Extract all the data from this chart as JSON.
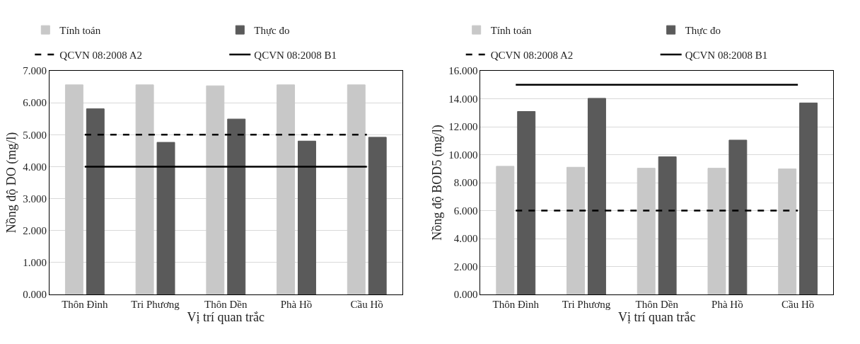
{
  "chart_data": [
    {
      "type": "bar",
      "xlabel": "Vị trí quan trắc",
      "ylabel": "Nồng độ DO (mg/l)",
      "categories": [
        "Thôn Đình",
        "Tri Phương",
        "Thôn Dền",
        "Phà Hồ",
        "Cầu Hồ"
      ],
      "series": [
        {
          "name": "Tính toán",
          "color": "#c8c8c8",
          "values": [
            6.56,
            6.56,
            6.53,
            6.56,
            6.56
          ]
        },
        {
          "name": "Thực đo",
          "color": "#5a5a5a",
          "values": [
            5.81,
            4.76,
            5.49,
            4.8,
            4.92
          ]
        },
        {
          "name": "QCVN 08:2008 A2",
          "type": "line",
          "line_style": "dashed",
          "color": "#000000",
          "values": [
            5,
            5,
            5,
            5,
            5
          ]
        },
        {
          "name": "QCVN 08:2008 B1",
          "type": "line",
          "line_style": "solid",
          "color": "#000000",
          "values": [
            4,
            4,
            4,
            4,
            4
          ]
        }
      ],
      "ylim": [
        0,
        7
      ],
      "yticks": [
        {
          "value": 0,
          "label": "0.000"
        },
        {
          "value": 1,
          "label": "1.000"
        },
        {
          "value": 2,
          "label": "2.000"
        },
        {
          "value": 3,
          "label": "3.000"
        },
        {
          "value": 4,
          "label": "4.000"
        },
        {
          "value": 5,
          "label": "5.000"
        },
        {
          "value": 6,
          "label": "6.000"
        },
        {
          "value": 7,
          "label": "7.000"
        }
      ],
      "grid": "y",
      "legend": "top"
    },
    {
      "type": "bar",
      "xlabel": "Vị trí quan trắc",
      "ylabel": "Nồng độ BOD5 (mg/l)",
      "categories": [
        "Thôn Đình",
        "Tri Phương",
        "Thôn Dền",
        "Phà Hồ",
        "Cầu Hồ"
      ],
      "series": [
        {
          "name": "Tính toán",
          "color": "#c8c8c8",
          "values": [
            9.17,
            9.1,
            9.03,
            9.03,
            8.98
          ]
        },
        {
          "name": "Thực đo",
          "color": "#5a5a5a",
          "values": [
            13.09,
            14.03,
            9.85,
            11.04,
            13.7
          ]
        },
        {
          "name": "QCVN 08:2008 A2",
          "type": "line",
          "line_style": "dashed",
          "color": "#000000",
          "values": [
            6,
            6,
            6,
            6,
            6
          ]
        },
        {
          "name": "QCVN 08:2008 B1",
          "type": "line",
          "line_style": "solid",
          "color": "#000000",
          "values": [
            15,
            15,
            15,
            15,
            15
          ]
        }
      ],
      "ylim": [
        0,
        16
      ],
      "yticks": [
        {
          "value": 0,
          "label": "0.000"
        },
        {
          "value": 2,
          "label": "2.000"
        },
        {
          "value": 4,
          "label": "4.000"
        },
        {
          "value": 6,
          "label": "6.000"
        },
        {
          "value": 8,
          "label": "8.000"
        },
        {
          "value": 10,
          "label": "10.000"
        },
        {
          "value": 12,
          "label": "12.000"
        },
        {
          "value": 14,
          "label": "14.000"
        },
        {
          "value": 16,
          "label": "16.000"
        }
      ],
      "grid": "y",
      "legend": "top"
    }
  ]
}
